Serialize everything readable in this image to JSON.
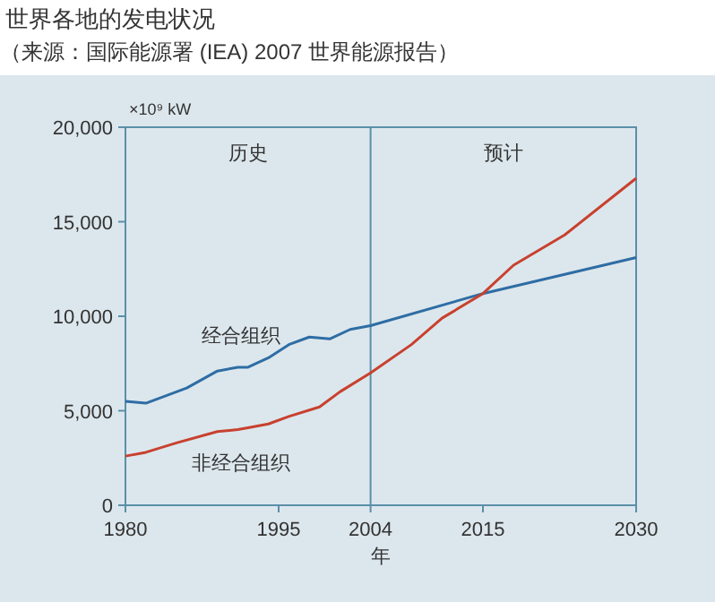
{
  "chart_data": {
    "type": "line",
    "title": "世界各地的发电状况",
    "subtitle": "（来源：国际能源署 (IEA) 2007 世界能源报告）",
    "xlabel": "年",
    "ylabel": "×10⁹ kW",
    "xlim": [
      1980,
      2030
    ],
    "xticks": [
      1980,
      1995,
      2004,
      2015,
      2030
    ],
    "ylim": [
      0,
      20000
    ],
    "yticks": [
      {
        "value": 0,
        "label": "0"
      },
      {
        "value": 5000,
        "label": "5,000"
      },
      {
        "value": 10000,
        "label": "10,000"
      },
      {
        "value": 15000,
        "label": "15,000"
      },
      {
        "value": 20000,
        "label": "20,000"
      }
    ],
    "grid": false,
    "marker": "none",
    "line_style": "solid",
    "annotations": [
      "历史",
      "预计"
    ],
    "ref_lines": [
      {
        "axis": "x",
        "value": 2004,
        "label": null,
        "color": "#5b8fa8"
      }
    ],
    "series": [
      {
        "name": "经合组织",
        "color": "#2e6da4",
        "x": [
          1980,
          1982,
          1984,
          1986,
          1989,
          1991,
          1992,
          1994,
          1996,
          1998,
          2000,
          2002,
          2004,
          2015,
          2030
        ],
        "values": [
          5500,
          5400,
          5800,
          6200,
          7100,
          7300,
          7300,
          7800,
          8500,
          8900,
          8800,
          9300,
          9500,
          11200,
          13100
        ]
      },
      {
        "name": "非经合组织",
        "color": "#c8412e",
        "x": [
          1980,
          1982,
          1985,
          1989,
          1991,
          1992,
          1994,
          1996,
          1999,
          2001,
          2004,
          2008,
          2011,
          2015,
          2018,
          2023,
          2030
        ],
        "values": [
          2600,
          2800,
          3300,
          3900,
          4000,
          4100,
          4300,
          4700,
          5200,
          6000,
          7000,
          8500,
          9900,
          11200,
          12700,
          14300,
          17300
        ]
      }
    ]
  }
}
